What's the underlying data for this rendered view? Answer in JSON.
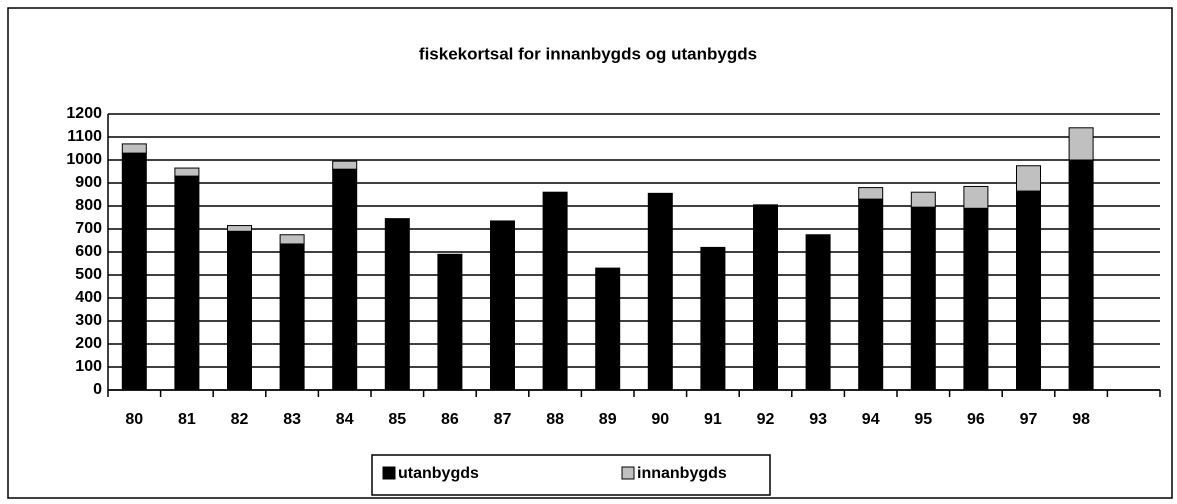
{
  "chart_data": {
    "type": "bar",
    "stacked": true,
    "title": "fiskekortsal for innanbygds og utanbygds",
    "categories": [
      "80",
      "81",
      "82",
      "83",
      "84",
      "85",
      "86",
      "87",
      "88",
      "89",
      "90",
      "91",
      "92",
      "93",
      "94",
      "95",
      "96",
      "97",
      "98",
      null
    ],
    "series": [
      {
        "name": "utanbygds",
        "color": "#000000",
        "values": [
          1030,
          930,
          690,
          635,
          960,
          745,
          590,
          735,
          860,
          530,
          855,
          620,
          805,
          675,
          830,
          795,
          790,
          865,
          1000,
          null
        ]
      },
      {
        "name": "innanbygds",
        "color": "#c0c0c0",
        "values": [
          40,
          35,
          25,
          40,
          35,
          0,
          0,
          0,
          0,
          0,
          0,
          0,
          0,
          0,
          50,
          65,
          95,
          110,
          140,
          null
        ]
      }
    ],
    "ylim": [
      0,
      1200
    ],
    "yticks": [
      0,
      100,
      200,
      300,
      400,
      500,
      600,
      700,
      800,
      900,
      1000,
      1100,
      1200
    ],
    "grid": true,
    "legend": "bottom"
  }
}
